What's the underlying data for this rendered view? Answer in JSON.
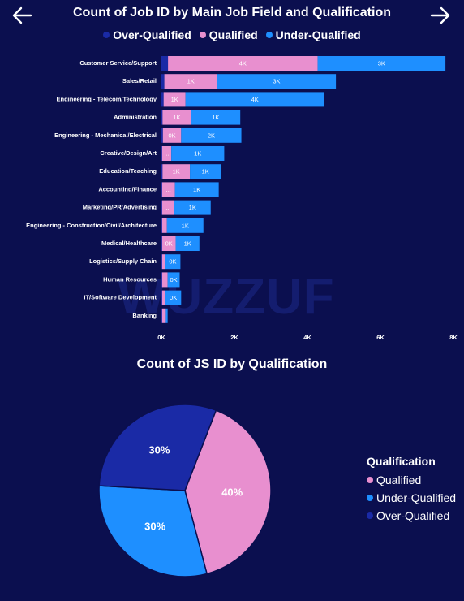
{
  "nav": {
    "back_icon": "arrow-left-icon",
    "forward_icon": "arrow-right-icon"
  },
  "watermark": "WUZZUF",
  "colors": {
    "over_qualified": "#1a2aa6",
    "qualified": "#e88fcf",
    "under_qualified": "#1e8fff",
    "background": "#0b0f4f"
  },
  "chart_data": [
    {
      "type": "bar",
      "orientation": "horizontal",
      "stacked": true,
      "title": "Count of Job ID by Main Job Field and Qualification",
      "legend_position": "top",
      "categories": [
        "Customer Service/Support",
        "Sales/Retail",
        "Engineering - Telecom/Technology",
        "Administration",
        "Engineering - Mechanical/Electrical",
        "Creative/Design/Art",
        "Education/Teaching",
        "Accounting/Finance",
        "Marketing/PR/Advertising",
        "Engineering - Construction/Civil/Architecture",
        "Medical/Healthcare",
        "Logistics/Supply Chain",
        "Human Resources",
        "IT/Software Development",
        "Banking"
      ],
      "series": [
        {
          "name": "Over-Qualified",
          "color": "#1a2aa6",
          "values": [
            180,
            80,
            60,
            30,
            40,
            20,
            30,
            20,
            20,
            20,
            20,
            20,
            20,
            20,
            20
          ],
          "labels": [
            "",
            "",
            "",
            "",
            "",
            "",
            "",
            "",
            "",
            "",
            "",
            "",
            "",
            "",
            ""
          ]
        },
        {
          "name": "Qualified",
          "color": "#e88fcf",
          "values": [
            4100,
            1450,
            600,
            780,
            500,
            250,
            750,
            350,
            330,
            130,
            370,
            80,
            150,
            90,
            100
          ],
          "labels": [
            "4K",
            "1K",
            "1K",
            "1K",
            "0K",
            "...",
            "1K",
            "...",
            "...",
            "",
            "0K",
            "",
            "",
            "",
            ""
          ]
        },
        {
          "name": "Under-Qualified",
          "color": "#1e8fff",
          "values": [
            3500,
            3250,
            3800,
            1350,
            1650,
            1450,
            850,
            1200,
            1000,
            1000,
            650,
            420,
            330,
            430,
            50
          ],
          "labels": [
            "3K",
            "3K",
            "4K",
            "1K",
            "2K",
            "1K",
            "1K",
            "1K",
            "1K",
            "1K",
            "1K",
            "0K",
            "0K",
            "0K",
            ""
          ]
        }
      ],
      "x_ticks": [
        "0K",
        "2K",
        "4K",
        "6K",
        "8K"
      ],
      "xlim": [
        0,
        8000
      ]
    },
    {
      "type": "pie",
      "title": "Count of JS ID by Qualification",
      "legend_title": "Qualification",
      "legend_position": "right",
      "slices": [
        {
          "name": "Qualified",
          "value": 40,
          "label": "40%",
          "color": "#e88fcf"
        },
        {
          "name": "Under-Qualified",
          "value": 30,
          "label": "30%",
          "color": "#1e8fff"
        },
        {
          "name": "Over-Qualified",
          "value": 30,
          "label": "30%",
          "color": "#1a2aa6"
        }
      ]
    }
  ]
}
